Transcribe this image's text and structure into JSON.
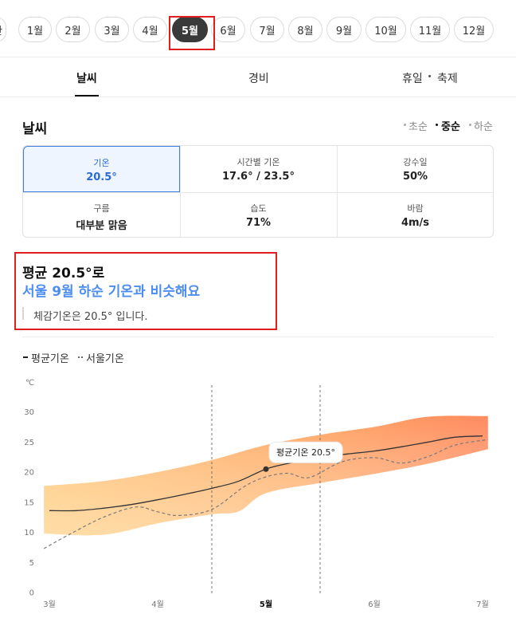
{
  "months": [
    {
      "label": "1월"
    },
    {
      "label": "2월"
    },
    {
      "label": "3월"
    },
    {
      "label": "4월"
    },
    {
      "label": "5월"
    },
    {
      "label": "6월"
    },
    {
      "label": "7월"
    },
    {
      "label": "8월"
    },
    {
      "label": "9월"
    },
    {
      "label": "10월"
    },
    {
      "label": "11월"
    },
    {
      "label": "12월"
    }
  ],
  "months_partial_left": "한",
  "selected_month": "5월",
  "tabs": {
    "weather": "날씨",
    "cost": "경비",
    "holiday": "휴일",
    "festival": "축제"
  },
  "weather": {
    "title": "날씨",
    "periods": {
      "early": "초순",
      "mid": "중순",
      "late": "하순"
    },
    "stats": {
      "temp": {
        "label": "기온",
        "value": "20.5°"
      },
      "hourly": {
        "label": "시간별 기온",
        "value": "17.6° / 23.5°"
      },
      "rain": {
        "label": "강수일",
        "value": "50%"
      },
      "cloud": {
        "label": "구름",
        "value": "대부분 맑음"
      },
      "humidity": {
        "label": "습도",
        "value": "71%"
      },
      "wind": {
        "label": "바람",
        "value": "4m/s"
      }
    },
    "summary": {
      "line1": "평균 20.5°로",
      "line2": "서울 9월 하순 기온과 비슷해요",
      "line3": "체감기온은 20.5° 입니다."
    }
  },
  "chart_data": {
    "type": "line",
    "ylabel": "℃",
    "ylim": [
      0,
      30
    ],
    "yticks": [
      0,
      5,
      10,
      15,
      20,
      25,
      30
    ],
    "x_labels": [
      "3월",
      "4월",
      "5월",
      "6월",
      "7월"
    ],
    "active_x": "5월",
    "legend_position": "top-left",
    "series": [
      {
        "name": "평균기온",
        "style": "solid",
        "color": "#333333",
        "x": [
          0,
          0.25,
          0.5,
          0.75,
          1,
          1.25,
          1.5,
          1.75,
          2,
          2.25,
          2.5,
          2.75,
          3,
          3.25,
          3.5,
          3.75,
          4
        ],
        "y": [
          13.6,
          13.6,
          14.0,
          14.6,
          15.4,
          16.3,
          17.3,
          18.5,
          20.5,
          21.6,
          22.4,
          23.0,
          23.5,
          24.2,
          25.0,
          25.8,
          26.0
        ]
      },
      {
        "name": "서울기온",
        "style": "dashed",
        "color": "#777777",
        "x": [
          -0.05,
          0.2,
          0.5,
          0.8,
          1.0,
          1.2,
          1.5,
          1.8,
          2.0,
          2.2,
          2.4,
          2.7,
          3.0,
          3.25,
          3.5,
          3.75,
          4.05
        ],
        "y": [
          7.3,
          9.8,
          12.5,
          14.2,
          13.4,
          12.8,
          13.8,
          17.6,
          19.2,
          19.8,
          19.1,
          21.7,
          22.4,
          21.5,
          22.6,
          24.5,
          25.4
        ]
      },
      {
        "name": "range_upper",
        "style": "band",
        "color": "#ff8a5b",
        "x": [
          -0.05,
          0.5,
          1.0,
          1.5,
          2.0,
          2.5,
          3.0,
          3.5,
          4.05
        ],
        "y": [
          17.7,
          18.5,
          20.0,
          22.0,
          24.5,
          26.2,
          27.5,
          29.2,
          29.3
        ]
      },
      {
        "name": "range_lower",
        "style": "band",
        "color": "#f6d9a0",
        "x": [
          -0.05,
          0.5,
          1.0,
          1.5,
          1.75,
          2.0,
          2.5,
          3.0,
          3.5,
          4.05
        ],
        "y": [
          9.8,
          9.6,
          11.5,
          13.0,
          13.5,
          16.5,
          18.2,
          19.7,
          21.4,
          23.8
        ]
      }
    ],
    "marker": {
      "x": 2,
      "y": 20.5,
      "label": "평균기온 20.5°"
    },
    "vlines": [
      1.5,
      2.5
    ]
  }
}
